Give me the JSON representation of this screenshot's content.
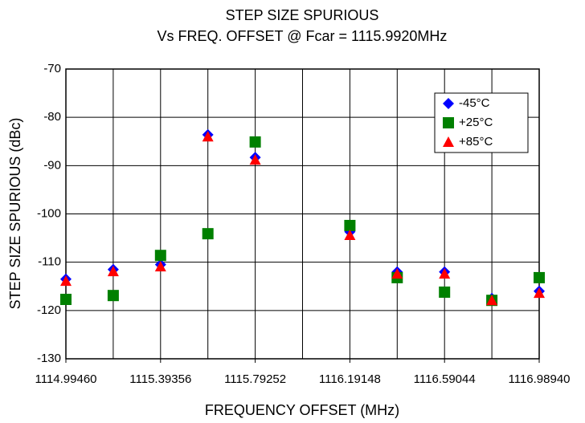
{
  "chart_data": {
    "type": "scatter",
    "title": "STEP SIZE SPURIOUS",
    "subtitle": "Vs FREQ. OFFSET @ Fcar = 1115.9920MHz",
    "x_label": "FREQUENCY OFFSET (MHz)",
    "y_label": "STEP SIZE SPURIOUS (dBc)",
    "xlim": [
      1114.9946,
      1116.9894
    ],
    "ylim": [
      -130,
      -70
    ],
    "xticks": [
      {
        "value": 1114.9946,
        "label": "1114.99460"
      },
      {
        "value": 1115.39356,
        "label": "1115.39356"
      },
      {
        "value": 1115.79252,
        "label": "1115.79252"
      },
      {
        "value": 1116.19148,
        "label": "1116.19148"
      },
      {
        "value": 1116.59044,
        "label": "1116.59044"
      },
      {
        "value": 1116.9894,
        "label": "1116.98940"
      }
    ],
    "xgrid_lines": [
      1114.9946,
      1115.19408,
      1115.39356,
      1115.59304,
      1115.79252,
      1115.992,
      1116.19148,
      1116.39096,
      1116.59044,
      1116.78992,
      1116.9894
    ],
    "yticks": [
      -130,
      -120,
      -110,
      -100,
      -90,
      -80,
      -70
    ],
    "grid": true,
    "legend": "upper right",
    "x": [
      1114.9946,
      1115.19408,
      1115.39356,
      1115.59304,
      1115.79252,
      1116.19148,
      1116.39096,
      1116.59044,
      1116.78992,
      1116.9894
    ],
    "series": [
      {
        "name": "-45°C",
        "color": "#0000ff",
        "marker": "diamond",
        "values": [
          -113.5,
          -111.5,
          -110.5,
          -83.6,
          -88.3,
          -103.7,
          -112,
          -112,
          -117.5,
          -116
        ]
      },
      {
        "name": "+25°C",
        "color": "#008000",
        "marker": "square",
        "values": [
          -117.7,
          -116.9,
          -108.6,
          -104.1,
          -85.1,
          -102.4,
          -113.2,
          -116.2,
          -117.9,
          -113.2
        ]
      },
      {
        "name": "+85°C",
        "color": "#ff0000",
        "marker": "triangle",
        "values": [
          -113.9,
          -111.9,
          -110.9,
          -84,
          -88.8,
          -104.4,
          -112.4,
          -112.4,
          -117.9,
          -116.4
        ]
      }
    ]
  }
}
